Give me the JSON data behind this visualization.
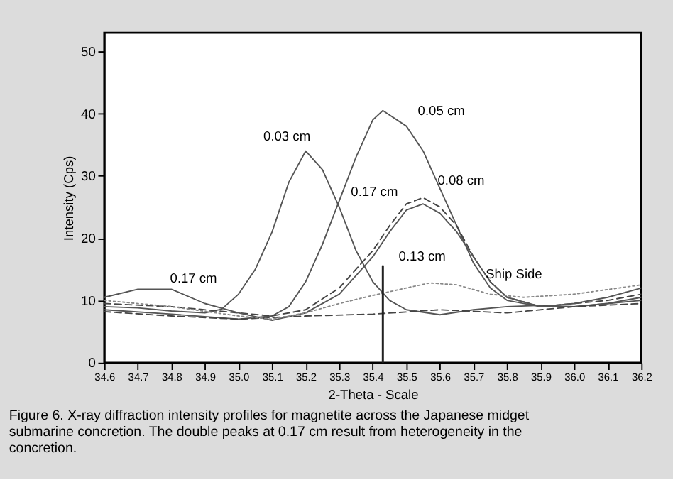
{
  "chart_data": {
    "type": "line",
    "xlabel": "2-Theta - Scale",
    "ylabel": "Intensity (Cps)",
    "xlim": [
      34.6,
      36.2
    ],
    "xticks": [
      34.6,
      34.7,
      34.8,
      34.9,
      {
        "value": 35.0,
        "label": "35.0"
      },
      35.1,
      35.2,
      35.3,
      35.4,
      35.5,
      35.6,
      35.7,
      35.8,
      35.9,
      {
        "value": 36.0,
        "label": "36.0"
      },
      36.1,
      36.2
    ],
    "ylim": [
      0,
      53
    ],
    "yticks": [
      0,
      10,
      20,
      30,
      40,
      50
    ],
    "grid": false,
    "marker": "none",
    "series": [
      {
        "color": "#555555",
        "line_style": "solid",
        "x": [
          34.6,
          34.7,
          34.8,
          34.9,
          34.95,
          35.0,
          35.05,
          35.1,
          35.15,
          35.2,
          35.25,
          35.3,
          35.35,
          35.4,
          35.45,
          35.5,
          35.6,
          35.7,
          35.8,
          35.9,
          36.0,
          36.1,
          36.2
        ],
        "values": [
          9,
          8.8,
          8.3,
          8,
          8.6,
          11,
          15,
          21,
          29,
          34,
          31,
          25,
          18,
          13,
          10,
          8.5,
          7.7,
          8.5,
          9,
          9.2,
          9,
          9.5,
          10
        ]
      },
      {
        "color": "#555555",
        "line_style": "solid",
        "x": [
          34.6,
          34.8,
          35.0,
          35.1,
          35.15,
          35.2,
          35.25,
          35.3,
          35.35,
          35.4,
          35.43,
          35.5,
          35.55,
          35.6,
          35.65,
          35.7,
          35.75,
          35.8,
          35.9,
          36.0,
          36.1,
          36.2
        ],
        "values": [
          8.5,
          7.8,
          7,
          7.5,
          9,
          13,
          19,
          26,
          33,
          39,
          40.5,
          38,
          34,
          28,
          22,
          16,
          12,
          10,
          9,
          9,
          9.5,
          10.5
        ]
      },
      {
        "color": "#444444",
        "line_style": "dashed",
        "x": [
          34.6,
          34.8,
          35.0,
          35.1,
          35.2,
          35.3,
          35.4,
          35.45,
          35.5,
          35.55,
          35.6,
          35.65,
          35.7,
          35.75,
          35.8,
          35.9,
          36.0,
          36.1,
          36.2
        ],
        "values": [
          9.5,
          9,
          8,
          7.5,
          8.5,
          12,
          18,
          22,
          25.5,
          26.5,
          25,
          22,
          17,
          13,
          10.5,
          9,
          9.5,
          10,
          11
        ]
      },
      {
        "color": "#555555",
        "line_style": "solid",
        "x": [
          34.6,
          34.7,
          34.8,
          34.9,
          35.0,
          35.1,
          35.2,
          35.3,
          35.4,
          35.45,
          35.5,
          35.55,
          35.6,
          35.65,
          35.7,
          35.75,
          35.8,
          35.9,
          36.0,
          36.1,
          36.2
        ],
        "values": [
          10.5,
          11.8,
          11.8,
          9.5,
          8,
          6.8,
          8,
          11,
          17,
          21,
          24.5,
          25.5,
          24,
          21,
          17,
          13,
          10.5,
          9,
          9.5,
          10.5,
          12
        ]
      },
      {
        "color": "#444444",
        "line_style": "dashed",
        "x": [
          34.6,
          34.8,
          35.0,
          35.2,
          35.4,
          35.6,
          35.8,
          36.0,
          36.2
        ],
        "values": [
          8.2,
          7.5,
          7,
          7.5,
          7.8,
          8.5,
          8,
          9,
          9.5
        ]
      },
      {
        "color": "#888888",
        "line_style": "dotted",
        "x": [
          34.6,
          34.8,
          35.0,
          35.1,
          35.2,
          35.3,
          35.4,
          35.5,
          35.57,
          35.65,
          35.75,
          35.85,
          36.0,
          36.2
        ],
        "values": [
          10,
          9,
          7.5,
          7,
          8,
          9.5,
          10.8,
          12,
          12.8,
          12.5,
          11,
          10.5,
          11,
          12.5
        ]
      },
      {
        "color": "#222222",
        "line_style": "solid",
        "x": [
          35.43,
          35.43
        ],
        "values": [
          0,
          15.5
        ]
      }
    ],
    "annotations": [
      {
        "text": "0.03 cm",
        "x": 35.2,
        "y": 34
      },
      {
        "text": "0.05 cm",
        "x": 35.55,
        "y": 34
      },
      {
        "text": "0.17 cm",
        "x": 35.5,
        "y": 24.5
      },
      {
        "text": "0.08 cm",
        "x": 35.55,
        "y": 26.5
      },
      {
        "text": "0.17 cm",
        "x": 34.8,
        "y": 11.8
      },
      {
        "text": "0.13 cm",
        "x": 35.43,
        "y": 15.5
      },
      {
        "text": "Ship Side",
        "x": 35.65,
        "y": 12.5
      },
      "Figure 6. X-ray diffraction intensity profiles for magnetite across the Japanese midget submarine concretion. The double peaks at 0.17 cm result from heterogeneity in the concretion."
    ]
  }
}
